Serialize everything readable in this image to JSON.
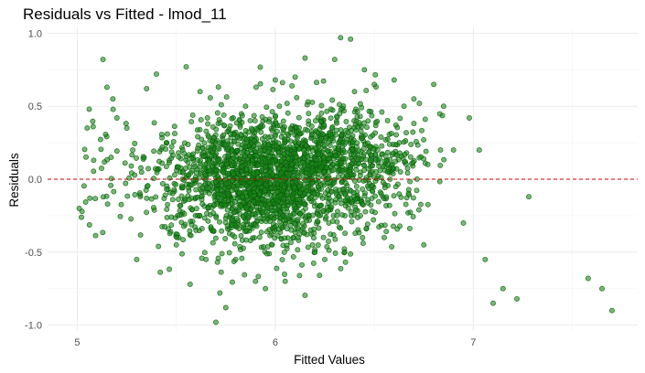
{
  "chart_data": {
    "type": "scatter",
    "title": "Residuals vs Fitted - lmod_11",
    "xlabel": "Fitted Values",
    "ylabel": "Residuals",
    "xlim": [
      4.85,
      7.83
    ],
    "ylim": [
      -1.04,
      1.04
    ],
    "x_ticks": [
      5,
      6,
      7
    ],
    "x_tick_labels": [
      "5",
      "6",
      "7"
    ],
    "y_ticks": [
      -1.0,
      -0.5,
      0.0,
      0.5,
      1.0
    ],
    "y_tick_labels": [
      "-1.0",
      "-0.5",
      "0.0",
      "0.5",
      "1.0"
    ],
    "grid": true,
    "legend": "none",
    "point_color": "#1a8a1a",
    "point_edge_color": "#0b5a0b",
    "point_opacity": 0.6,
    "reference_line": {
      "y": 0,
      "color": "#cc0000",
      "style": "dashed"
    },
    "n_points_approx": 2500,
    "sampled_points": {
      "x": [
        5.01,
        5.05,
        5.06,
        5.08,
        5.13,
        5.15,
        5.18,
        5.2,
        5.25,
        5.28,
        5.3,
        5.35,
        5.4,
        5.45,
        5.5,
        5.55,
        5.57,
        5.6,
        5.62,
        5.65,
        5.7,
        5.72,
        5.75,
        5.8,
        5.85,
        5.9,
        5.95,
        6.0,
        6.05,
        6.1,
        6.15,
        6.2,
        6.25,
        6.3,
        6.33,
        6.35,
        6.38,
        6.4,
        6.45,
        6.5,
        6.55,
        6.6,
        6.65,
        6.7,
        6.75,
        6.8,
        6.85,
        6.9,
        6.95,
        6.98,
        7.03,
        7.06,
        7.1,
        7.15,
        7.22,
        7.28,
        7.58,
        7.65,
        7.7
      ],
      "y": [
        -0.2,
        0.35,
        0.48,
        0.36,
        0.82,
        0.63,
        0.55,
        0.42,
        0.35,
        0.2,
        -0.55,
        0.62,
        0.72,
        0.25,
        -0.45,
        0.77,
        -0.72,
        -0.35,
        0.6,
        -0.55,
        -0.98,
        -0.78,
        -0.88,
        -0.55,
        0.5,
        -0.7,
        -0.75,
        0.68,
        -0.7,
        0.7,
        0.83,
        -0.5,
        -0.55,
        0.82,
        0.97,
        -0.5,
        0.96,
        0.6,
        0.75,
        0.65,
        -0.4,
        0.68,
        0.5,
        0.55,
        -0.45,
        0.65,
        0.5,
        0.2,
        -0.3,
        0.42,
        0.2,
        -0.55,
        -0.85,
        -0.75,
        -0.82,
        -0.12,
        -0.68,
        -0.75,
        -0.9
      ]
    }
  }
}
